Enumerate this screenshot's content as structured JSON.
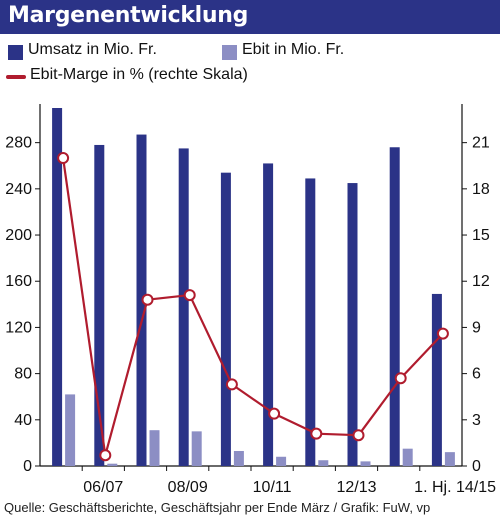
{
  "chart_data": {
    "type": "bar",
    "title": "Margenentwicklung",
    "categories": [
      "",
      "06/07",
      "",
      "08/09",
      "",
      "10/11",
      "",
      "12/13",
      "",
      "1. Hj. 14/15"
    ],
    "series": [
      {
        "name": "Umsatz in Mio. Fr.",
        "type": "bar",
        "axis": "left",
        "color": "#2b3387",
        "values": [
          310,
          278,
          287,
          275,
          254,
          262,
          249,
          245,
          276,
          149
        ]
      },
      {
        "name": "Ebit in Mio. Fr.",
        "type": "bar",
        "axis": "left",
        "color": "#8c8ec4",
        "values": [
          62,
          2,
          31,
          30,
          13,
          8,
          5,
          4,
          15,
          12
        ]
      },
      {
        "name": "Ebit-Marge in % (rechte Skala)",
        "type": "line",
        "axis": "right",
        "color": "#b01c2e",
        "values": [
          20.0,
          0.7,
          10.8,
          11.1,
          5.3,
          3.4,
          2.1,
          2.0,
          5.7,
          8.6
        ]
      }
    ],
    "y_left": {
      "ticks": [
        0,
        40,
        80,
        120,
        160,
        200,
        240,
        280
      ],
      "range": [
        0,
        310
      ]
    },
    "y_right": {
      "ticks": [
        0,
        3,
        6,
        9,
        12,
        15,
        18,
        21
      ],
      "range": [
        0,
        23.25
      ]
    },
    "grid": false,
    "source": "Quelle: Geschäftsberichte, Geschäftsjahr per Ende März / Grafik: FuW, vp"
  },
  "legend": {
    "umsatz_label": "Umsatz in Mio. Fr.",
    "ebit_label": "Ebit in Mio. Fr.",
    "marge_label": "Ebit-Marge in % (rechte Skala)"
  }
}
